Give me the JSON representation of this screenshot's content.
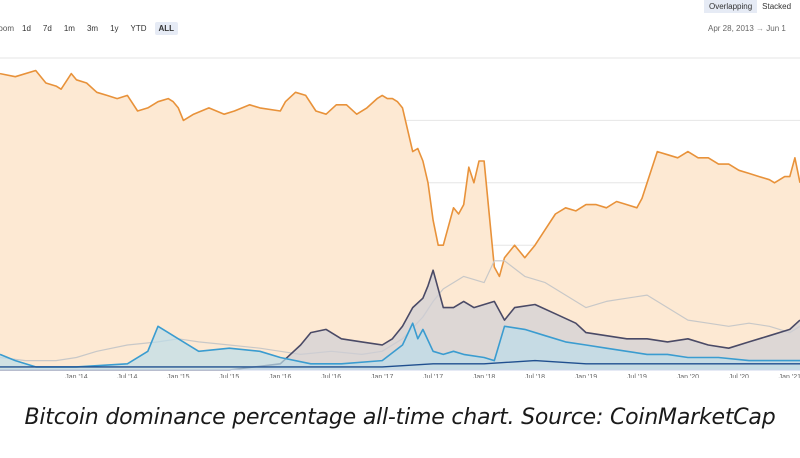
{
  "toolbar": {
    "zoom_label": "Zoom",
    "buttons": [
      "1d",
      "7d",
      "1m",
      "3m",
      "1y",
      "YTD",
      "ALL"
    ],
    "active": "ALL"
  },
  "mode": {
    "overlapping": "Overlapping",
    "stacked": "Stacked",
    "active": "Overlapping"
  },
  "date_range": {
    "from": "Apr 28, 2013",
    "separator": "→",
    "to": "Jun 1"
  },
  "caption": "Bitcoin dominance percentage all-time chart. Source: CoinMarketCap",
  "colors": {
    "btc": "#e8923a",
    "btc_fill": "#fde9d3",
    "eth": "#4a4a66",
    "eth_fill": "#cfcfd6",
    "light": "#c8c8c8",
    "blue": "#3a9cd0",
    "blue_fill": "#bcdde9",
    "dark_blue": "#1f4f8f",
    "grid": "#e6e6e6"
  },
  "chart_data": {
    "type": "area",
    "x_ticks": [
      "Jan '14",
      "Jul '14",
      "Jan '15",
      "Jul '15",
      "Jan '16",
      "Jul '16",
      "Jan '17",
      "Jul '17",
      "Jan '18",
      "Jul '18",
      "Jan '19",
      "Jul '19",
      "Jan '20",
      "Jul '20",
      "Jan '21"
    ],
    "y_range": [
      0,
      100
    ],
    "grid": true,
    "series": [
      {
        "key": "btc",
        "x": [
          2013.25,
          2013.4,
          2013.6,
          2013.7,
          2013.8,
          2013.85,
          2013.95,
          2014.0,
          2014.1,
          2014.2,
          2014.3,
          2014.4,
          2014.5,
          2014.6,
          2014.7,
          2014.8,
          2014.9,
          2014.95,
          2015.0,
          2015.05,
          2015.15,
          2015.3,
          2015.45,
          2015.55,
          2015.7,
          2015.8,
          2016.0,
          2016.05,
          2016.15,
          2016.25,
          2016.35,
          2016.45,
          2016.55,
          2016.65,
          2016.75,
          2016.85,
          2016.95,
          2017.0,
          2017.05,
          2017.1,
          2017.15,
          2017.2,
          2017.3,
          2017.35,
          2017.4,
          2017.45,
          2017.5,
          2017.55,
          2017.6,
          2017.7,
          2017.75,
          2017.8,
          2017.85,
          2017.9,
          2017.95,
          2018.0,
          2018.05,
          2018.1,
          2018.15,
          2018.2,
          2018.3,
          2018.4,
          2018.5,
          2018.6,
          2018.7,
          2018.8,
          2018.9,
          2019.0,
          2019.1,
          2019.2,
          2019.3,
          2019.4,
          2019.5,
          2019.55,
          2019.6,
          2019.7,
          2019.8,
          2019.9,
          2020.0,
          2020.1,
          2020.2,
          2020.3,
          2020.4,
          2020.5,
          2020.6,
          2020.7,
          2020.8,
          2020.85,
          2020.95,
          2021.0,
          2021.05,
          2021.1
        ],
        "y": [
          95,
          94,
          96,
          92,
          91,
          90,
          95,
          93,
          92,
          89,
          88,
          87,
          88,
          83,
          84,
          86,
          87,
          86,
          84,
          80,
          82,
          84,
          82,
          83,
          85,
          84,
          83,
          86,
          89,
          88,
          83,
          82,
          85,
          85,
          82,
          84,
          87,
          88,
          87,
          87,
          86,
          84,
          70,
          71,
          67,
          60,
          48,
          40,
          40,
          52,
          50,
          53,
          65,
          60,
          67,
          67,
          50,
          33,
          30,
          36,
          40,
          36,
          40,
          45,
          50,
          52,
          51,
          53,
          53,
          52,
          54,
          53,
          52,
          55,
          60,
          70,
          69,
          68,
          70,
          68,
          68,
          66,
          66,
          64,
          63,
          62,
          61,
          60,
          62,
          62,
          68,
          60
        ],
        "fill": true
      },
      {
        "key": "light",
        "x": [
          2013.25,
          2013.5,
          2013.8,
          2014.0,
          2014.2,
          2014.5,
          2014.8,
          2015.0,
          2015.2,
          2015.5,
          2015.8,
          2016.0,
          2016.2,
          2016.5,
          2016.8,
          2017.0,
          2017.2,
          2017.4,
          2017.5,
          2017.6,
          2017.8,
          2018.0,
          2018.1,
          2018.2,
          2018.4,
          2018.6,
          2018.8,
          2019.0,
          2019.2,
          2019.4,
          2019.6,
          2019.8,
          2020.0,
          2020.2,
          2020.4,
          2020.6,
          2020.8,
          2021.0,
          2021.1
        ],
        "y": [
          4,
          3,
          3,
          4,
          6,
          8,
          9,
          10,
          9,
          8,
          7,
          6,
          5,
          6,
          5,
          6,
          10,
          17,
          22,
          26,
          30,
          28,
          35,
          35,
          30,
          28,
          24,
          20,
          22,
          23,
          24,
          20,
          16,
          15,
          14,
          15,
          14,
          12,
          14
        ],
        "fill": false
      },
      {
        "key": "eth",
        "x": [
          2013.25,
          2013.5,
          2014.0,
          2014.5,
          2015.0,
          2015.5,
          2016.0,
          2016.1,
          2016.2,
          2016.3,
          2016.45,
          2016.6,
          2016.8,
          2017.0,
          2017.1,
          2017.2,
          2017.3,
          2017.4,
          2017.45,
          2017.5,
          2017.6,
          2017.7,
          2017.8,
          2017.9,
          2018.0,
          2018.1,
          2018.2,
          2018.3,
          2018.5,
          2018.7,
          2018.9,
          2019.0,
          2019.2,
          2019.4,
          2019.6,
          2019.8,
          2020.0,
          2020.2,
          2020.4,
          2020.6,
          2020.8,
          2021.0,
          2021.1
        ],
        "y": [
          0,
          0,
          0,
          0,
          0,
          0,
          2,
          5,
          8,
          12,
          13,
          10,
          9,
          8,
          10,
          14,
          20,
          23,
          27,
          32,
          20,
          20,
          22,
          20,
          21,
          22,
          16,
          20,
          21,
          18,
          15,
          12,
          11,
          10,
          10,
          9,
          10,
          8,
          7,
          9,
          11,
          13,
          16
        ],
        "fill": true
      },
      {
        "key": "blue",
        "x": [
          2013.25,
          2013.4,
          2013.6,
          2014.0,
          2014.5,
          2014.7,
          2014.8,
          2014.9,
          2015.0,
          2015.2,
          2015.5,
          2015.8,
          2016.0,
          2016.3,
          2016.6,
          2017.0,
          2017.2,
          2017.3,
          2017.35,
          2017.4,
          2017.5,
          2017.6,
          2017.7,
          2017.8,
          2018.0,
          2018.1,
          2018.2,
          2018.4,
          2018.6,
          2018.8,
          2019.0,
          2019.2,
          2019.4,
          2019.6,
          2019.8,
          2020.0,
          2020.3,
          2020.6,
          2020.9,
          2021.1
        ],
        "y": [
          5,
          3,
          1,
          1,
          2,
          6,
          14,
          12,
          10,
          6,
          7,
          6,
          4,
          2,
          2,
          3,
          8,
          15,
          10,
          13,
          6,
          5,
          6,
          5,
          4,
          3,
          14,
          13,
          11,
          9,
          8,
          7,
          6,
          5,
          5,
          4,
          4,
          3,
          3,
          3
        ],
        "fill": true
      },
      {
        "key": "dark_blue",
        "x": [
          2013.25,
          2014.0,
          2015.0,
          2016.0,
          2017.0,
          2017.5,
          2018.0,
          2018.5,
          2019.0,
          2020.0,
          2021.1
        ],
        "y": [
          1,
          1,
          1,
          1,
          1,
          2,
          2,
          3,
          2,
          2,
          2
        ],
        "fill": false
      }
    ]
  }
}
